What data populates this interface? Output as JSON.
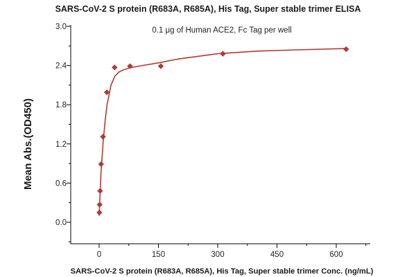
{
  "chart_data": {
    "type": "scatter",
    "title": "SARS-CoV-2 S protein (R683A, R685A), His Tag, Super stable trimer ELISA",
    "subtitle": "0.1 μg of Human ACE2, Fc Tag per well",
    "xlabel": "SARS-CoV-2 S protein (R683A, R685A), His Tag, Super stable trimer Conc. (ng/mL)",
    "ylabel": "Mean Abs.(OD450)",
    "xlim": [
      -50,
      700
    ],
    "ylim": [
      -0.3,
      3.0
    ],
    "xticks": [
      0,
      150,
      300,
      450,
      600
    ],
    "xtick_labels": [
      "0",
      "150",
      "300",
      "450",
      "600"
    ],
    "yticks": [
      0.0,
      0.6,
      1.2,
      1.8,
      2.4,
      3.0
    ],
    "ytick_labels": [
      "0.0",
      "0.6",
      "1.2",
      "1.8",
      "2.4",
      "3.0"
    ],
    "grid": false,
    "legend": "none",
    "marker_color": "#b03a34",
    "line_color": "#b03a34",
    "series": [
      {
        "x": [
          0.61,
          1.22,
          2.44,
          4.88,
          9.77,
          19.5,
          39.1,
          78.1,
          156,
          313,
          625
        ],
        "y": [
          0.15,
          0.27,
          0.48,
          0.89,
          1.31,
          1.99,
          2.37,
          2.39,
          2.39,
          2.58,
          2.65
        ]
      }
    ],
    "fit_curve": {
      "x": [
        0,
        2,
        5,
        10,
        15,
        20,
        30,
        40,
        50,
        60,
        75,
        100,
        150,
        200,
        300,
        400,
        500,
        625
      ],
      "y": [
        0.1,
        0.38,
        0.78,
        1.22,
        1.55,
        1.8,
        2.1,
        2.24,
        2.3,
        2.33,
        2.36,
        2.39,
        2.44,
        2.5,
        2.58,
        2.62,
        2.64,
        2.66
      ]
    }
  }
}
